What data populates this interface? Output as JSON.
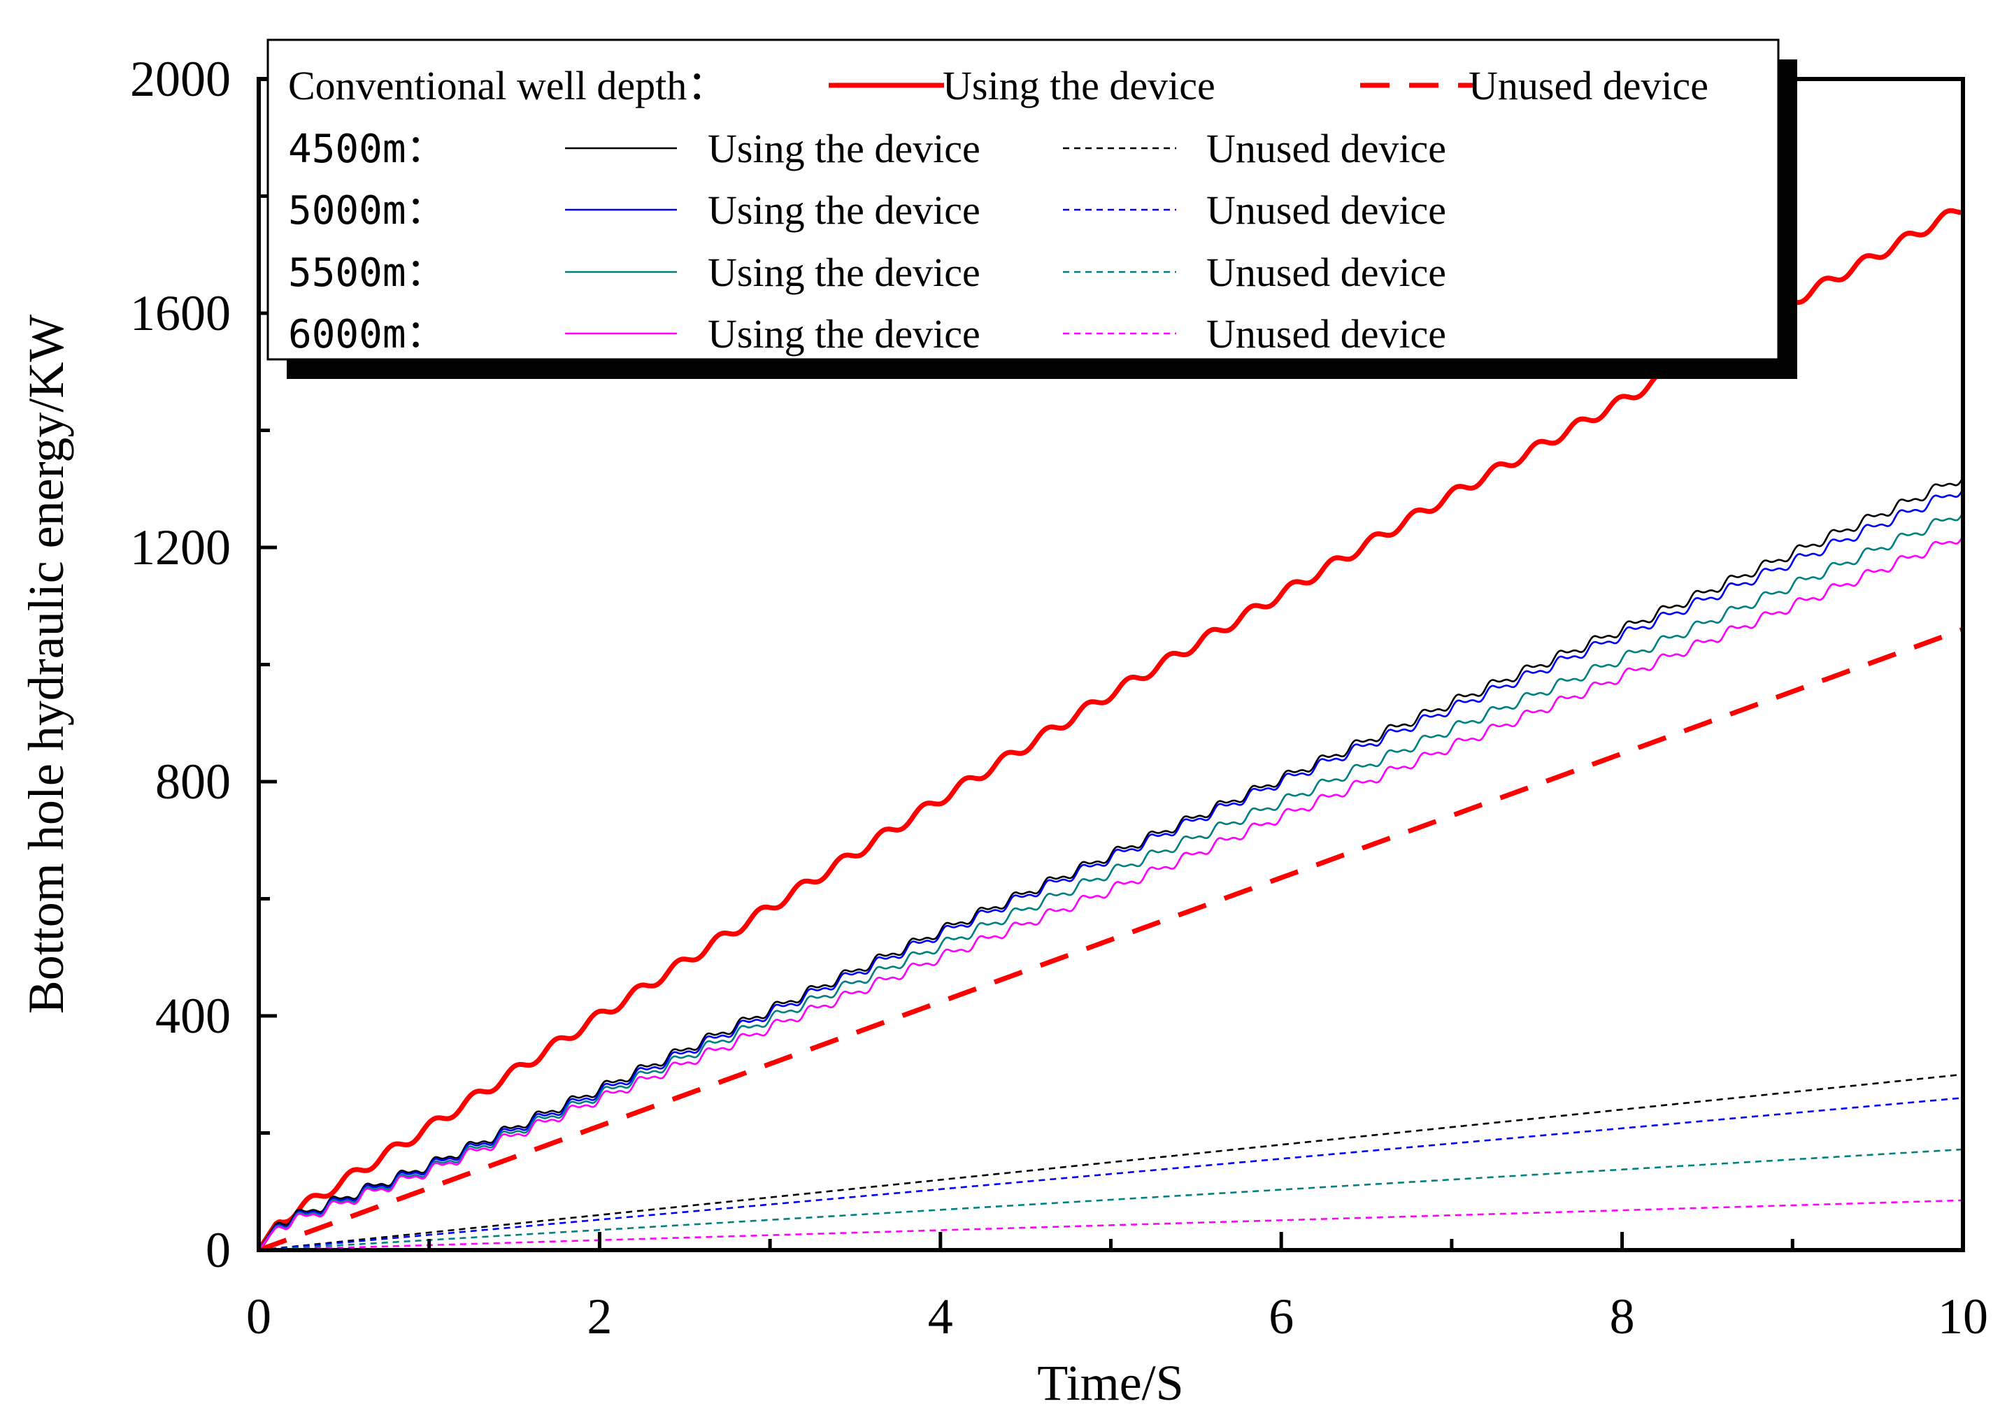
{
  "chart_data": {
    "type": "line",
    "title": "",
    "xlabel": "Time/S",
    "ylabel": "Bottom hole hydraulic energy/KW",
    "xlim": [
      0,
      10
    ],
    "ylim": [
      0,
      2000
    ],
    "x_ticks": [
      0,
      2,
      4,
      6,
      8,
      10
    ],
    "y_ticks": [
      0,
      400,
      800,
      1200,
      1600,
      2000
    ],
    "x_tick_labels": [
      "0",
      "2",
      "4",
      "6",
      "8",
      "10"
    ],
    "y_tick_labels": [
      "0",
      "400",
      "800",
      "1200",
      "1600",
      "2000"
    ],
    "grid": false,
    "legend_position": "top-left",
    "legend": {
      "rows": [
        {
          "group": "Conventional well depth：",
          "using_label": "Using the device",
          "unused_label": "Unused device",
          "color": "#ff0000"
        },
        {
          "group": "4500m：",
          "using_label": "Using the device",
          "unused_label": "Unused device",
          "color": "#000000"
        },
        {
          "group": "5000m：",
          "using_label": "Using the device",
          "unused_label": "Unused device",
          "color": "#0000ff"
        },
        {
          "group": "5500m：",
          "using_label": "Using the device",
          "unused_label": "Unused device",
          "color": "#008080"
        },
        {
          "group": "6000m：",
          "using_label": "Using the device",
          "unused_label": "Unused device",
          "color": "#ff00ff"
        }
      ]
    },
    "series": [
      {
        "name": "Conventional well depth - Using the device",
        "color": "#ff0000",
        "style": "solid",
        "weight": "thick",
        "wave": "sine",
        "x": [
          0,
          0.1,
          1,
          2,
          3,
          4,
          5,
          6,
          7,
          8,
          9,
          10
        ],
        "values": [
          0,
          45,
          210,
          400,
          585,
          770,
          950,
          1120,
          1290,
          1450,
          1620,
          1780
        ]
      },
      {
        "name": "Conventional well depth - Unused device",
        "color": "#ff0000",
        "style": "dashed",
        "weight": "thick",
        "wave": "none",
        "x": [
          0,
          10
        ],
        "values": [
          0,
          1060
        ]
      },
      {
        "name": "4500m - Using the device",
        "color": "#000000",
        "style": "solid",
        "weight": "thin",
        "wave": "step",
        "x": [
          0,
          0.1,
          1,
          2,
          3,
          4,
          5,
          6,
          7,
          8,
          9,
          10
        ],
        "values": [
          0,
          45,
          145,
          275,
          410,
          545,
          675,
          805,
          935,
          1060,
          1190,
          1320
        ]
      },
      {
        "name": "5000m - Using the device",
        "color": "#0000ff",
        "style": "solid",
        "weight": "thin",
        "wave": "step",
        "x": [
          0,
          0.1,
          1,
          2,
          3,
          4,
          5,
          6,
          7,
          8,
          9,
          10
        ],
        "values": [
          0,
          42,
          142,
          270,
          405,
          540,
          670,
          800,
          925,
          1050,
          1175,
          1300
        ]
      },
      {
        "name": "5500m - Using the device",
        "color": "#008080",
        "style": "solid",
        "weight": "thin",
        "wave": "step",
        "x": [
          0,
          0.1,
          1,
          2,
          3,
          4,
          5,
          6,
          7,
          8,
          9,
          10
        ],
        "values": [
          0,
          40,
          138,
          265,
          395,
          520,
          645,
          765,
          890,
          1010,
          1135,
          1260
        ]
      },
      {
        "name": "6000m - Using the device",
        "color": "#ff00ff",
        "style": "solid",
        "weight": "thin",
        "wave": "step",
        "x": [
          0,
          0.1,
          1,
          2,
          3,
          4,
          5,
          6,
          7,
          8,
          9,
          10
        ],
        "values": [
          0,
          38,
          135,
          258,
          380,
          500,
          615,
          740,
          860,
          980,
          1100,
          1220
        ]
      },
      {
        "name": "4500m - Unused device",
        "color": "#000000",
        "style": "dotted",
        "weight": "thin",
        "wave": "none",
        "x": [
          0,
          10
        ],
        "values": [
          0,
          300
        ]
      },
      {
        "name": "5000m - Unused device",
        "color": "#0000ff",
        "style": "dotted",
        "weight": "thin",
        "wave": "none",
        "x": [
          0,
          10
        ],
        "values": [
          0,
          260
        ]
      },
      {
        "name": "5500m - Unused device",
        "color": "#008080",
        "style": "dotted",
        "weight": "thin",
        "wave": "none",
        "x": [
          0,
          10
        ],
        "values": [
          0,
          172
        ]
      },
      {
        "name": "6000m - Unused device",
        "color": "#ff00ff",
        "style": "dotted",
        "weight": "thin",
        "wave": "none",
        "x": [
          0,
          10
        ],
        "values": [
          0,
          85
        ]
      }
    ]
  }
}
